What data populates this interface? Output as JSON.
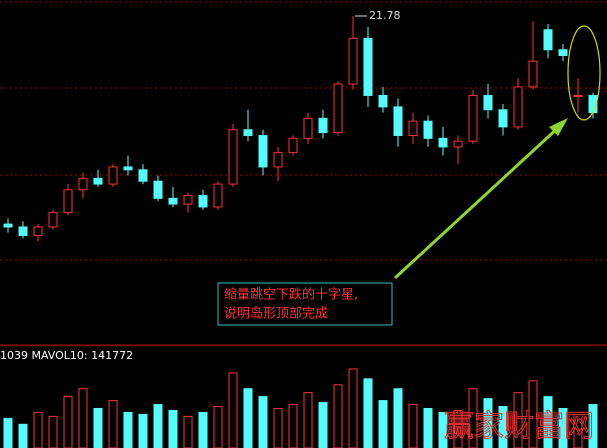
{
  "chart_data": {
    "type": "candlestick",
    "open": [
      14.5,
      14.4,
      14.1,
      14.4,
      14.9,
      15.7,
      16.1,
      15.9,
      16.5,
      16.4,
      16.0,
      15.4,
      15.2,
      15.5,
      15.1,
      15.9,
      17.8,
      17.6,
      16.5,
      17.0,
      17.5,
      18.2,
      17.7,
      19.4,
      21.0,
      19.0,
      18.6,
      17.6,
      18.1,
      17.5,
      17.2,
      17.4,
      19.0,
      18.5,
      17.9,
      19.3,
      21.3,
      20.6,
      19.0,
      19.0
    ],
    "high": [
      14.7,
      14.6,
      14.5,
      15.0,
      15.9,
      16.3,
      16.4,
      16.6,
      16.9,
      16.6,
      16.2,
      15.8,
      15.6,
      15.7,
      16.0,
      18.0,
      18.5,
      17.8,
      17.2,
      17.6,
      18.4,
      18.5,
      19.5,
      21.78,
      21.4,
      19.3,
      18.9,
      18.4,
      18.3,
      17.9,
      17.6,
      19.2,
      19.4,
      18.7,
      19.6,
      21.6,
      21.5,
      20.8,
      19.6,
      19.1
    ],
    "low": [
      14.2,
      14.0,
      13.9,
      14.3,
      14.8,
      15.4,
      15.8,
      15.8,
      16.2,
      15.9,
      15.3,
      15.1,
      14.9,
      15.0,
      15.0,
      15.8,
      17.4,
      16.2,
      16.0,
      16.9,
      17.3,
      17.5,
      17.6,
      19.2,
      18.6,
      18.4,
      17.2,
      17.3,
      17.2,
      16.9,
      16.6,
      17.3,
      18.2,
      17.6,
      17.8,
      19.2,
      20.3,
      20.2,
      18.4,
      18.2
    ],
    "close": [
      14.4,
      14.1,
      14.4,
      14.9,
      15.7,
      16.1,
      15.9,
      16.5,
      16.4,
      16.0,
      15.4,
      15.2,
      15.5,
      15.1,
      15.9,
      17.8,
      17.6,
      16.5,
      17.0,
      17.5,
      18.2,
      17.7,
      19.4,
      21.0,
      19.0,
      18.6,
      17.6,
      18.1,
      17.5,
      17.2,
      17.4,
      19.0,
      18.5,
      17.9,
      19.3,
      20.2,
      20.6,
      20.4,
      19.0,
      18.4
    ],
    "volume": [
      150000,
      120000,
      180000,
      160000,
      260000,
      300000,
      200000,
      240000,
      180000,
      170000,
      220000,
      190000,
      160000,
      180000,
      210000,
      380000,
      300000,
      260000,
      200000,
      220000,
      280000,
      230000,
      320000,
      400000,
      350000,
      240000,
      300000,
      220000,
      200000,
      180000,
      190000,
      300000,
      250000,
      210000,
      280000,
      340000,
      260000,
      200000,
      170000,
      220000
    ],
    "ylim": [
      10.27,
      22.34
    ],
    "vlim": [
      0,
      420000
    ],
    "up_color": "#ff3232",
    "down_color": "#54fcfc",
    "max_price": 21.78,
    "volume_label": "1039 MAVOL10: 141772",
    "annotation": [
      "缩量跳空下跌的十字星,",
      "说明岛形顶部完成"
    ],
    "watermark": "赢家财富网"
  }
}
